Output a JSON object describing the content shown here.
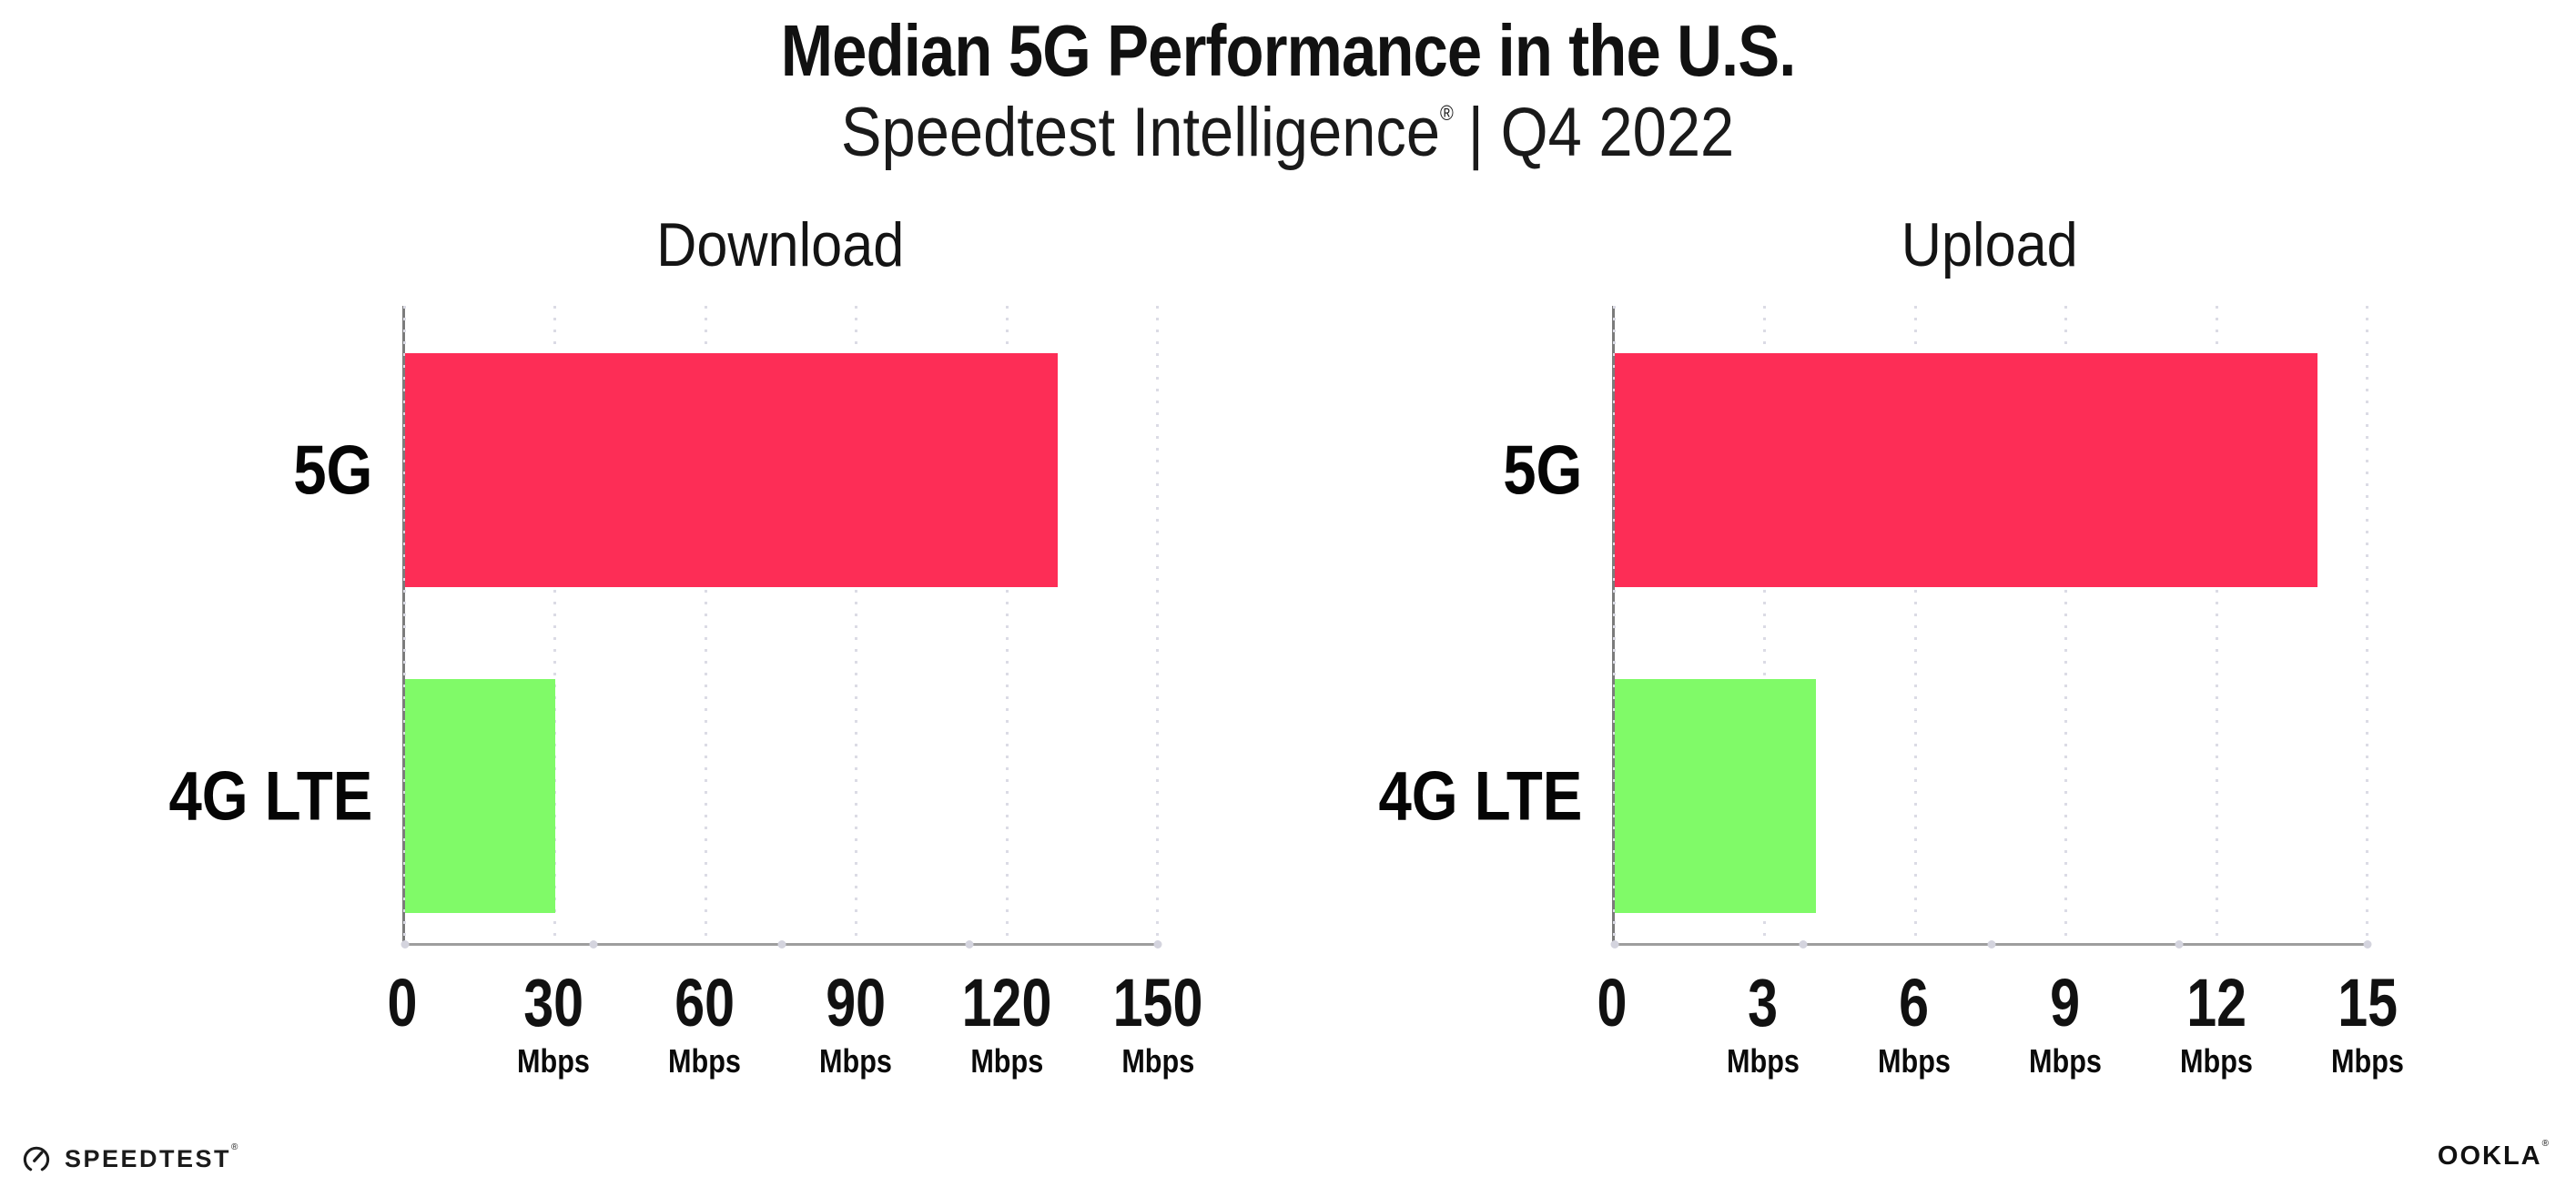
{
  "header": {
    "title": "Median 5G Performance in the U.S.",
    "subtitle_brand": "Speedtest Intelligence",
    "subtitle_reg": "®",
    "subtitle_rest": "| Q4 2022"
  },
  "colors": {
    "bar_5g": "#FD2D56",
    "bar_4g_lte": "#80FA68",
    "gridline": "#DBDBE5",
    "y_axis": "#7b7b7b",
    "x_axis": "#9e9e9e",
    "text": "#111111"
  },
  "chart_data": [
    {
      "type": "bar",
      "orientation": "horizontal",
      "title": "Download",
      "categories": [
        "5G",
        "4G LTE"
      ],
      "values": [
        130,
        30
      ],
      "unit": "Mbps",
      "xlabel": "",
      "ylabel": "",
      "xlim": [
        0,
        150
      ],
      "xticks": [
        0,
        30,
        60,
        90,
        120,
        150
      ],
      "grid": true,
      "legend": false,
      "bar_colors": [
        "#FD2D56",
        "#80FA68"
      ]
    },
    {
      "type": "bar",
      "orientation": "horizontal",
      "title": "Upload",
      "categories": [
        "5G",
        "4G LTE"
      ],
      "values": [
        14,
        4
      ],
      "unit": "Mbps",
      "xlabel": "",
      "ylabel": "",
      "xlim": [
        0,
        15
      ],
      "xticks": [
        0,
        3,
        6,
        9,
        12,
        15
      ],
      "grid": true,
      "legend": false,
      "bar_colors": [
        "#FD2D56",
        "#80FA68"
      ]
    }
  ],
  "footer": {
    "speedtest_label": "SPEEDTEST",
    "ookla_label": "OOKLA",
    "reg": "®"
  }
}
